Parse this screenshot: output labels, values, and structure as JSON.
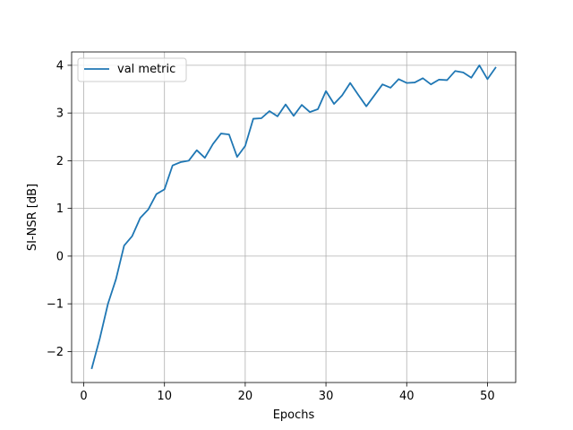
{
  "chart_data": {
    "type": "line",
    "title": "",
    "xlabel": "Epochs",
    "ylabel": "SI-NSR [dB]",
    "xlim": [
      -1.5,
      53.5
    ],
    "ylim": [
      -2.65,
      4.28
    ],
    "xticks": [
      0,
      10,
      20,
      30,
      40,
      50
    ],
    "yticks": [
      -2,
      -1,
      0,
      1,
      2,
      3,
      4
    ],
    "xtick_labels": [
      "0",
      "10",
      "20",
      "30",
      "40",
      "50"
    ],
    "ytick_labels": [
      "−2",
      "−1",
      "0",
      "1",
      "2",
      "3",
      "4"
    ],
    "grid": true,
    "legend_position": "top-left",
    "series": [
      {
        "name": "val metric",
        "color": "#1f77b4",
        "x": [
          1,
          2,
          3,
          4,
          5,
          6,
          7,
          8,
          9,
          10,
          11,
          12,
          13,
          14,
          15,
          16,
          17,
          18,
          19,
          20,
          21,
          22,
          23,
          24,
          25,
          26,
          27,
          28,
          29,
          30,
          31,
          32,
          33,
          34,
          35,
          36,
          37,
          38,
          39,
          40,
          41,
          42,
          43,
          44,
          45,
          46,
          47,
          48,
          49,
          50,
          51
        ],
        "values": [
          -2.35,
          -1.72,
          -1.0,
          -0.48,
          0.22,
          0.42,
          0.8,
          0.98,
          1.3,
          1.4,
          1.9,
          1.97,
          2.0,
          2.22,
          2.06,
          2.35,
          2.57,
          2.55,
          2.08,
          2.31,
          2.88,
          2.89,
          3.04,
          2.93,
          3.18,
          2.94,
          3.17,
          3.02,
          3.08,
          3.46,
          3.19,
          3.37,
          3.63,
          3.38,
          3.14,
          3.37,
          3.6,
          3.53,
          3.71,
          3.63,
          3.64,
          3.73,
          3.6,
          3.7,
          3.69,
          3.88,
          3.85,
          3.74,
          4.0,
          3.71,
          3.95
        ]
      }
    ]
  }
}
